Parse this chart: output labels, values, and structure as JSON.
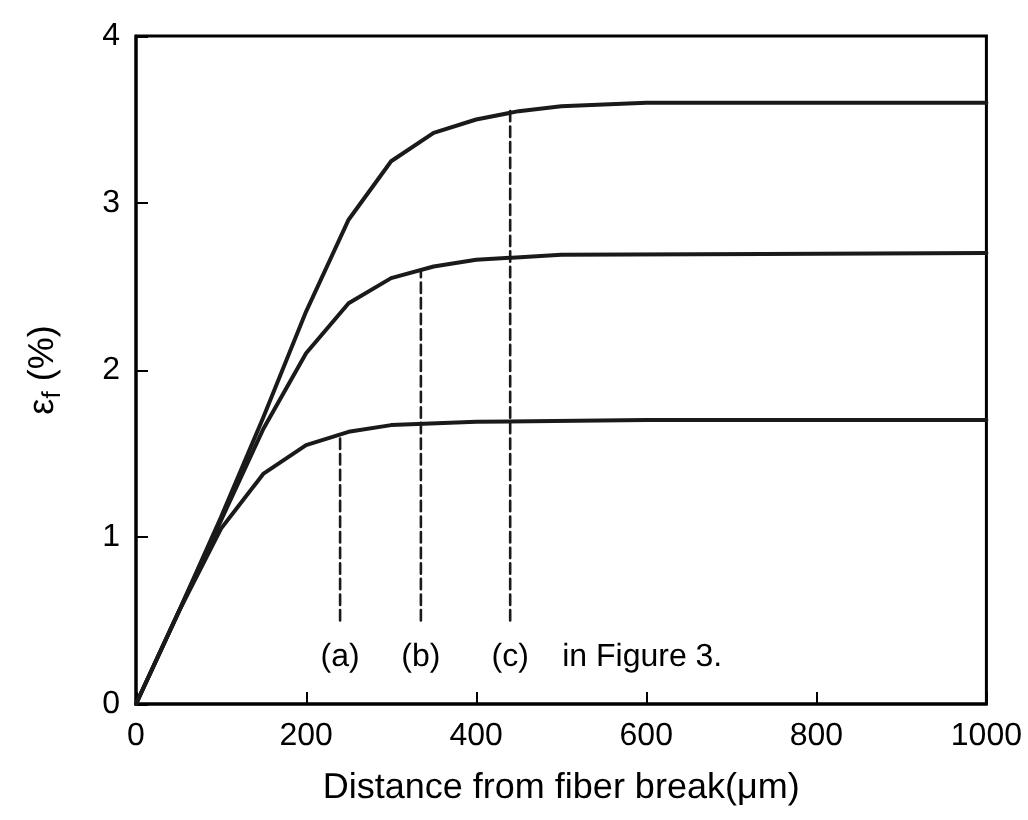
{
  "chart_data": {
    "type": "line",
    "xlabel": "Distance from fiber break(μm)",
    "ylabel": "ε$_{f}$ (%)",
    "xlim": [
      0,
      1000
    ],
    "xticks": [
      0,
      200,
      400,
      600,
      800,
      1000
    ],
    "ylim": [
      0,
      4
    ],
    "yticks": [
      0,
      1,
      2,
      3,
      4
    ],
    "series": [
      {
        "color": "#1a1a1a",
        "line_style": "solid",
        "x": [
          0,
          50,
          100,
          150,
          200,
          250,
          300,
          400,
          600,
          1000
        ],
        "values": [
          0,
          0.55,
          1.05,
          1.38,
          1.55,
          1.63,
          1.67,
          1.69,
          1.7,
          1.7
        ]
      },
      {
        "color": "#1a1a1a",
        "line_style": "solid",
        "x": [
          0,
          50,
          100,
          150,
          200,
          250,
          300,
          350,
          400,
          500,
          1000
        ],
        "values": [
          0,
          0.55,
          1.1,
          1.65,
          2.1,
          2.4,
          2.55,
          2.62,
          2.66,
          2.69,
          2.7
        ]
      },
      {
        "color": "#1a1a1a",
        "line_style": "solid",
        "x": [
          0,
          50,
          100,
          150,
          200,
          250,
          300,
          350,
          400,
          450,
          500,
          600,
          1000
        ],
        "values": [
          0,
          0.55,
          1.12,
          1.72,
          2.35,
          2.9,
          3.25,
          3.42,
          3.5,
          3.55,
          3.58,
          3.6,
          3.6
        ]
      },
      {
        "color": "#1a1a1a",
        "line_style": "dashed",
        "x": [
          240,
          240
        ],
        "values": [
          0.5,
          1.6
        ]
      },
      {
        "color": "#1a1a1a",
        "line_style": "dashed",
        "x": [
          335,
          335
        ],
        "values": [
          0.5,
          2.6
        ]
      },
      {
        "color": "#1a1a1a",
        "line_style": "dashed",
        "x": [
          440,
          440
        ],
        "values": [
          0.5,
          3.55
        ]
      }
    ],
    "annotations": [
      "(a)",
      "(b)",
      "(c)",
      "in Figure 3."
    ]
  }
}
